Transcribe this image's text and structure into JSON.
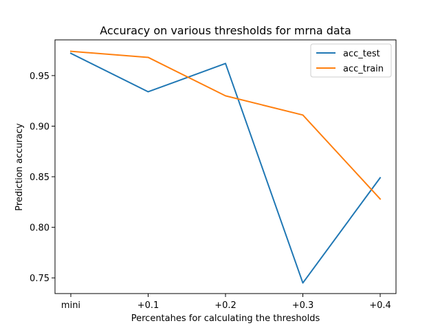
{
  "chart_data": {
    "type": "line",
    "title": "Accuracy on various thresholds for mrna data",
    "xlabel": "Percentahes for calculating the thresholds",
    "ylabel": "Prediction accuracy",
    "categories": [
      "mini",
      "+0.1",
      "+0.2",
      "+0.3",
      "+0.4"
    ],
    "yticks": [
      "0.75",
      "0.80",
      "0.85",
      "0.90",
      "0.95"
    ],
    "ytick_values": [
      0.75,
      0.8,
      0.85,
      0.9,
      0.95
    ],
    "ylim": [
      0.7345,
      0.9853
    ],
    "grid": false,
    "legend_position": "top-right",
    "series": [
      {
        "name": "acc_test",
        "color": "#1f77b4",
        "values": [
          0.972,
          0.934,
          0.962,
          0.745,
          0.849
        ]
      },
      {
        "name": "acc_train",
        "color": "#ff7f0e",
        "values": [
          0.974,
          0.968,
          0.93,
          0.911,
          0.828
        ]
      }
    ]
  }
}
